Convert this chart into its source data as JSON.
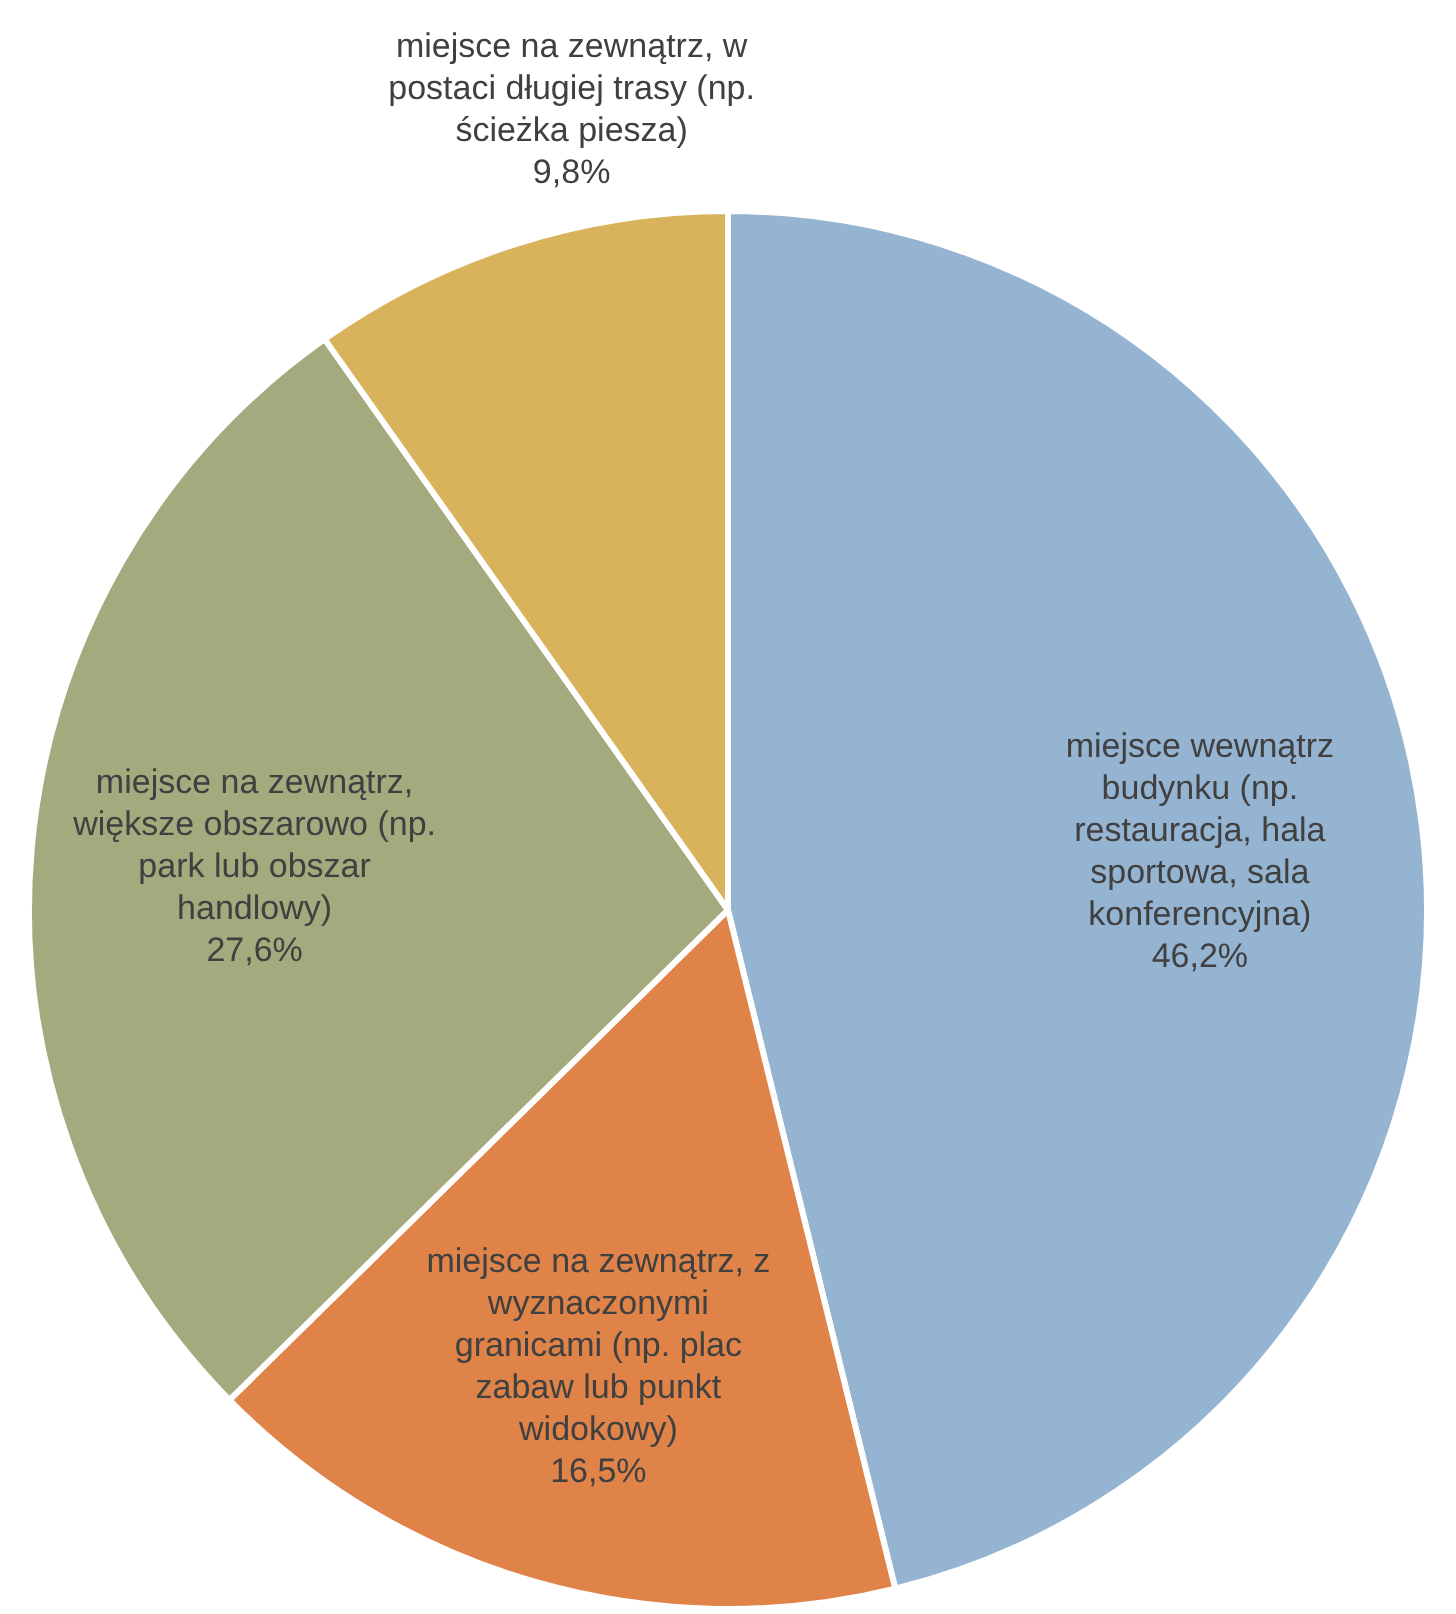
{
  "chart_data": {
    "type": "pie",
    "categories": [
      "miejsce wewnątrz budynku (np. restauracja, hala sportowa, sala konferencyjna)",
      "miejsce na zewnątrz, z wyznaczonymi granicami (np. plac zabaw lub punkt widokowy)",
      "miejsce na zewnątrz, większe obszarowo (np. park lub obszar handlowy)",
      "miejsce na zewnątrz, w postaci długiej trasy (np. ścieżka piesza)"
    ],
    "values": [
      46.2,
      16.5,
      27.6,
      9.8
    ],
    "colors": [
      "#95b4d2",
      "#df8348",
      "#a5aa7e",
      "#d9b25c"
    ],
    "value_labels": [
      "46,2%",
      "16,5%",
      "27,6%",
      "9,8%"
    ],
    "legend": false
  }
}
